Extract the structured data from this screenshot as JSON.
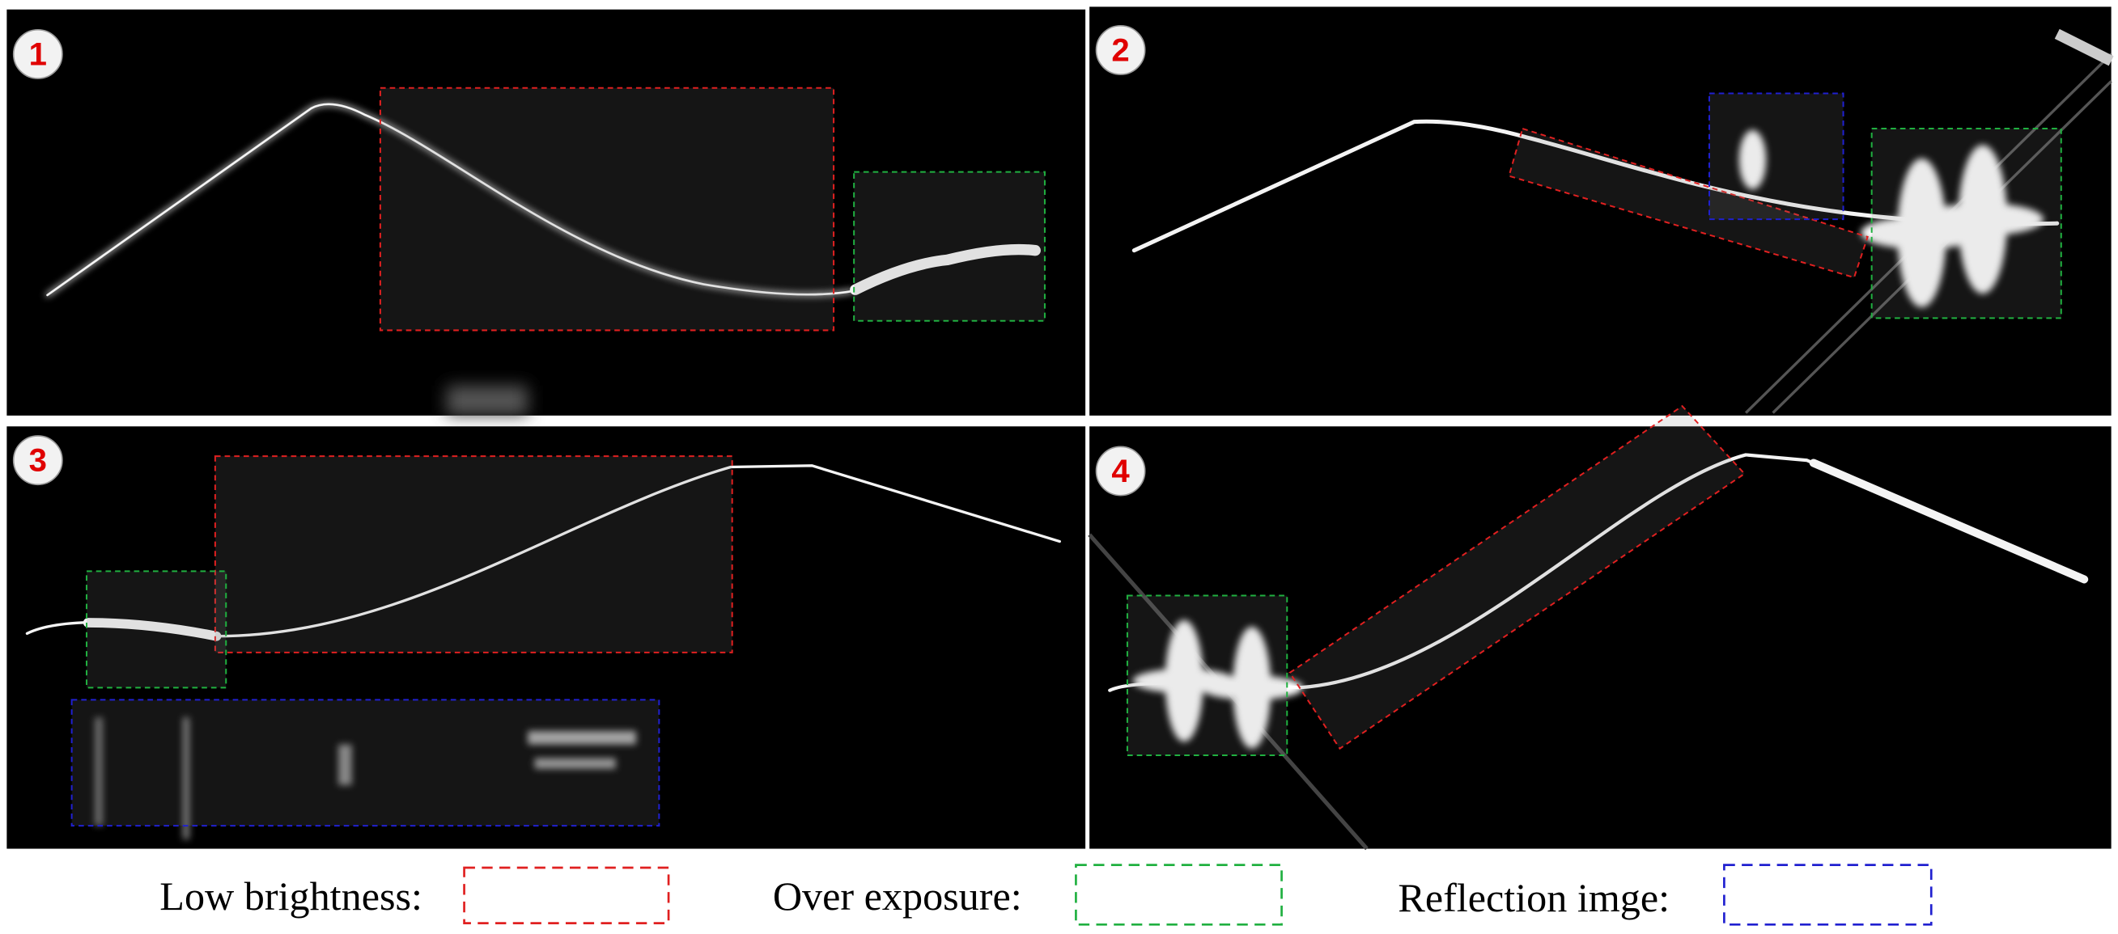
{
  "panels": [
    {
      "label": "1"
    },
    {
      "label": "2"
    },
    {
      "label": "3"
    },
    {
      "label": "4"
    }
  ],
  "legend": [
    {
      "label": "Low brightness:"
    },
    {
      "label": "Over exposure:"
    },
    {
      "label": "Reflection imge:"
    }
  ]
}
